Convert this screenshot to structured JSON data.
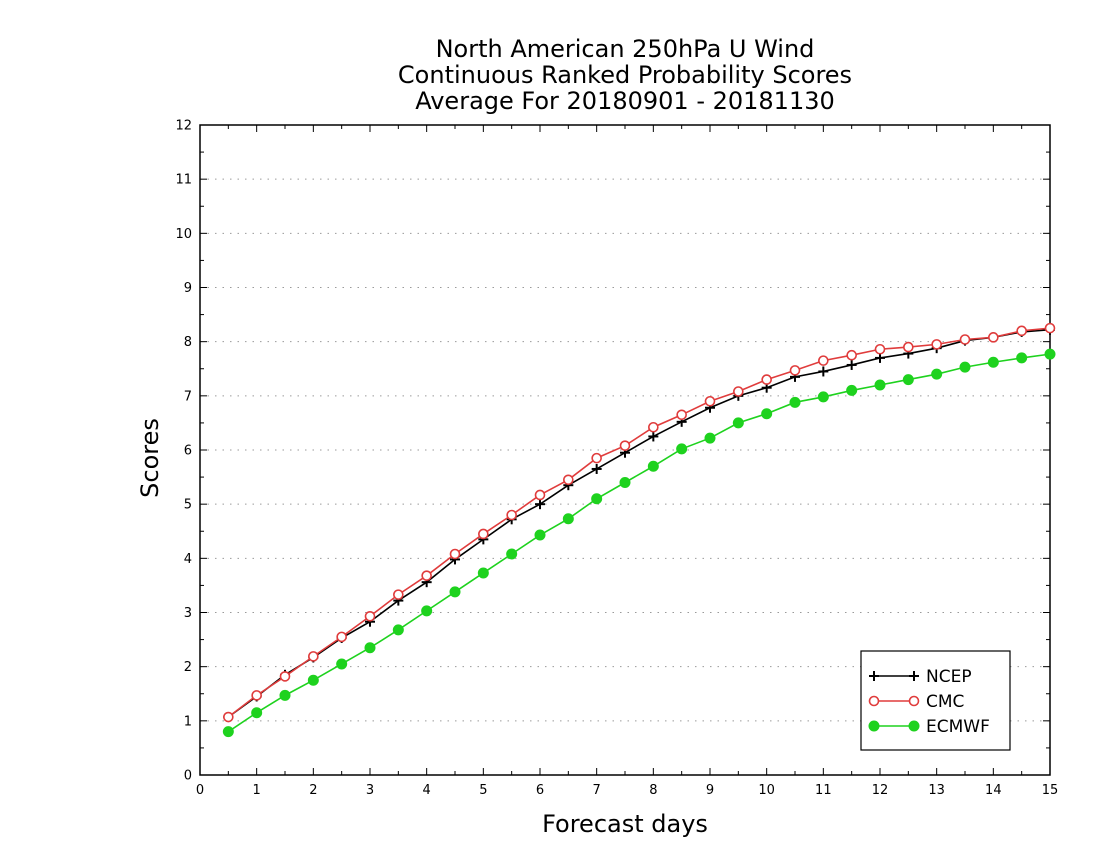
{
  "chart_data": {
    "type": "line",
    "title_lines": [
      "North American 250hPa U Wind",
      "Continuous Ranked Probability Scores",
      "Average For 20180901 - 20181130"
    ],
    "xlabel": "Forecast days",
    "ylabel": "Scores",
    "xlim": [
      0,
      15
    ],
    "ylim": [
      0,
      12
    ],
    "x_ticks": [
      "0",
      "1",
      "2",
      "3",
      "4",
      "5",
      "6",
      "7",
      "8",
      "9",
      "10",
      "11",
      "12",
      "13",
      "14",
      "15"
    ],
    "y_ticks": [
      "0",
      "1",
      "2",
      "3",
      "4",
      "5",
      "6",
      "7",
      "8",
      "9",
      "10",
      "11",
      "12"
    ],
    "grid": "horizontal dotted",
    "legend_position": "bottom-right",
    "x": [
      0.5,
      1,
      1.5,
      2,
      2.5,
      3,
      3.5,
      4,
      4.5,
      5,
      5.5,
      6,
      6.5,
      7,
      7.5,
      8,
      8.5,
      9,
      9.5,
      10,
      10.5,
      11,
      11.5,
      12,
      12.5,
      13,
      13.5,
      14,
      14.5,
      15
    ],
    "series": [
      {
        "name": "NCEP",
        "color": "#000000",
        "marker": "plus",
        "values": [
          1.07,
          1.45,
          1.85,
          2.17,
          2.53,
          2.83,
          3.22,
          3.56,
          3.98,
          4.35,
          4.72,
          5.0,
          5.35,
          5.65,
          5.95,
          6.25,
          6.52,
          6.78,
          7.0,
          7.15,
          7.35,
          7.45,
          7.57,
          7.7,
          7.78,
          7.88,
          8.02,
          8.08,
          8.18,
          8.22
        ]
      },
      {
        "name": "CMC",
        "color": "#e03c3c",
        "marker": "open-circle",
        "values": [
          1.07,
          1.47,
          1.82,
          2.19,
          2.55,
          2.93,
          3.33,
          3.68,
          4.08,
          4.45,
          4.8,
          5.17,
          5.45,
          5.85,
          6.08,
          6.42,
          6.65,
          6.9,
          7.08,
          7.3,
          7.47,
          7.65,
          7.75,
          7.86,
          7.9,
          7.95,
          8.04,
          8.08,
          8.2,
          8.25
        ]
      },
      {
        "name": "ECMWF",
        "color": "#1ed21e",
        "marker": "filled-circle",
        "values": [
          0.8,
          1.15,
          1.47,
          1.75,
          2.05,
          2.35,
          2.68,
          3.03,
          3.38,
          3.73,
          4.08,
          4.43,
          4.73,
          5.1,
          5.4,
          5.7,
          6.02,
          6.22,
          6.5,
          6.67,
          6.88,
          6.98,
          7.1,
          7.2,
          7.3,
          7.4,
          7.53,
          7.62,
          7.7,
          7.77
        ]
      }
    ]
  }
}
